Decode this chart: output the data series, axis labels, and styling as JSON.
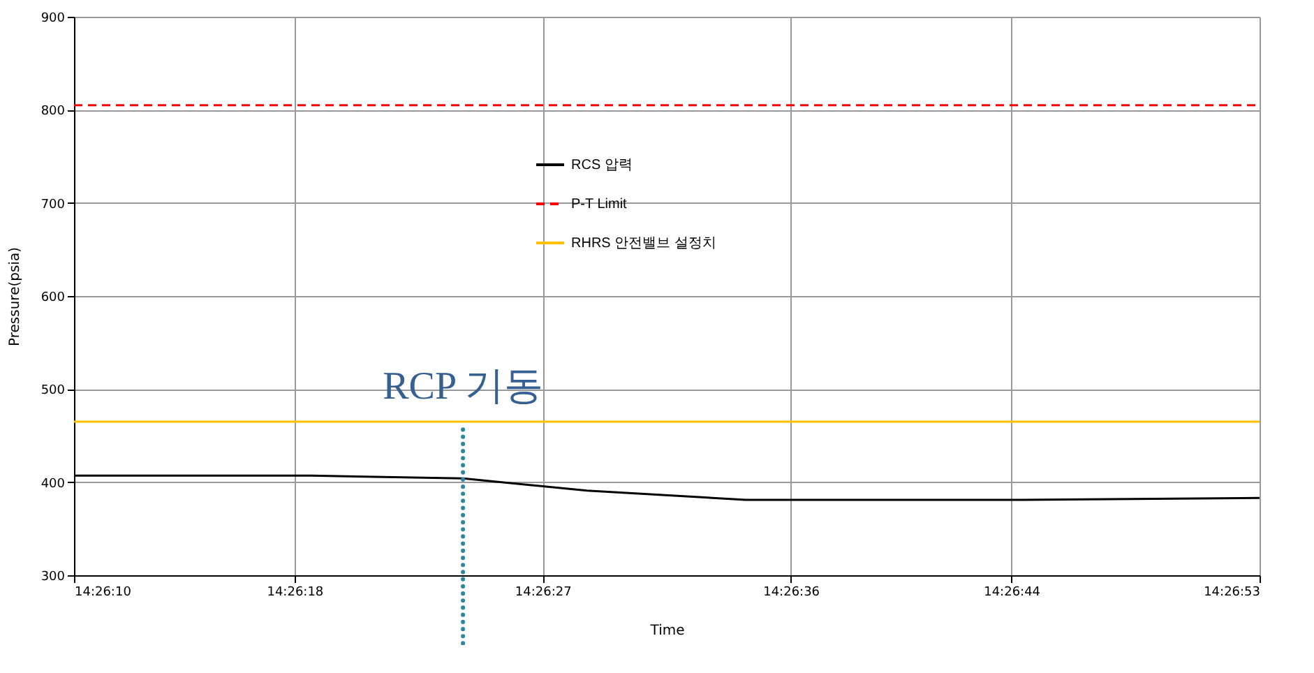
{
  "chart_data": {
    "type": "line",
    "xlabel": "Time",
    "ylabel": "Pressure(psia)",
    "x": [
      14.436111,
      14.4385,
      14.44003,
      14.44128,
      14.44288,
      14.44567,
      14.448056
    ],
    "xlim": [
      14.436111,
      14.448056
    ],
    "xticks": [
      {
        "value": 14.436111,
        "label": "14:26:10"
      },
      {
        "value": 14.438333,
        "label": "14:26:18"
      },
      {
        "value": 14.440833,
        "label": "14:26:27"
      },
      {
        "value": 14.443333,
        "label": "14:26:36"
      },
      {
        "value": 14.445556,
        "label": "14:26:44"
      },
      {
        "value": 14.448056,
        "label": "14:26:53"
      }
    ],
    "ylim": [
      300,
      900
    ],
    "yticks": [
      300,
      400,
      500,
      600,
      700,
      800,
      900
    ],
    "series": [
      {
        "name": "RCS 압력",
        "color": "#000000",
        "values": [
          407,
          407,
          404,
          391,
          381,
          381,
          383
        ]
      },
      {
        "name": "P-T Limit",
        "color": "#ff0000",
        "line_style": "dashed",
        "values": [
          805,
          805,
          805,
          805,
          805,
          805,
          805
        ]
      },
      {
        "name": "RHRS 안전밸브 설정치",
        "color": "#ffc000",
        "values": [
          465,
          465,
          465,
          465,
          465,
          465,
          465
        ]
      }
    ],
    "ref_lines": [
      {
        "axis": "x",
        "value": 14.44003,
        "label": "RCP 기동",
        "color": "#31859c",
        "line_style": "dotted"
      }
    ],
    "grid": true,
    "legend": "top",
    "marker": "none"
  }
}
